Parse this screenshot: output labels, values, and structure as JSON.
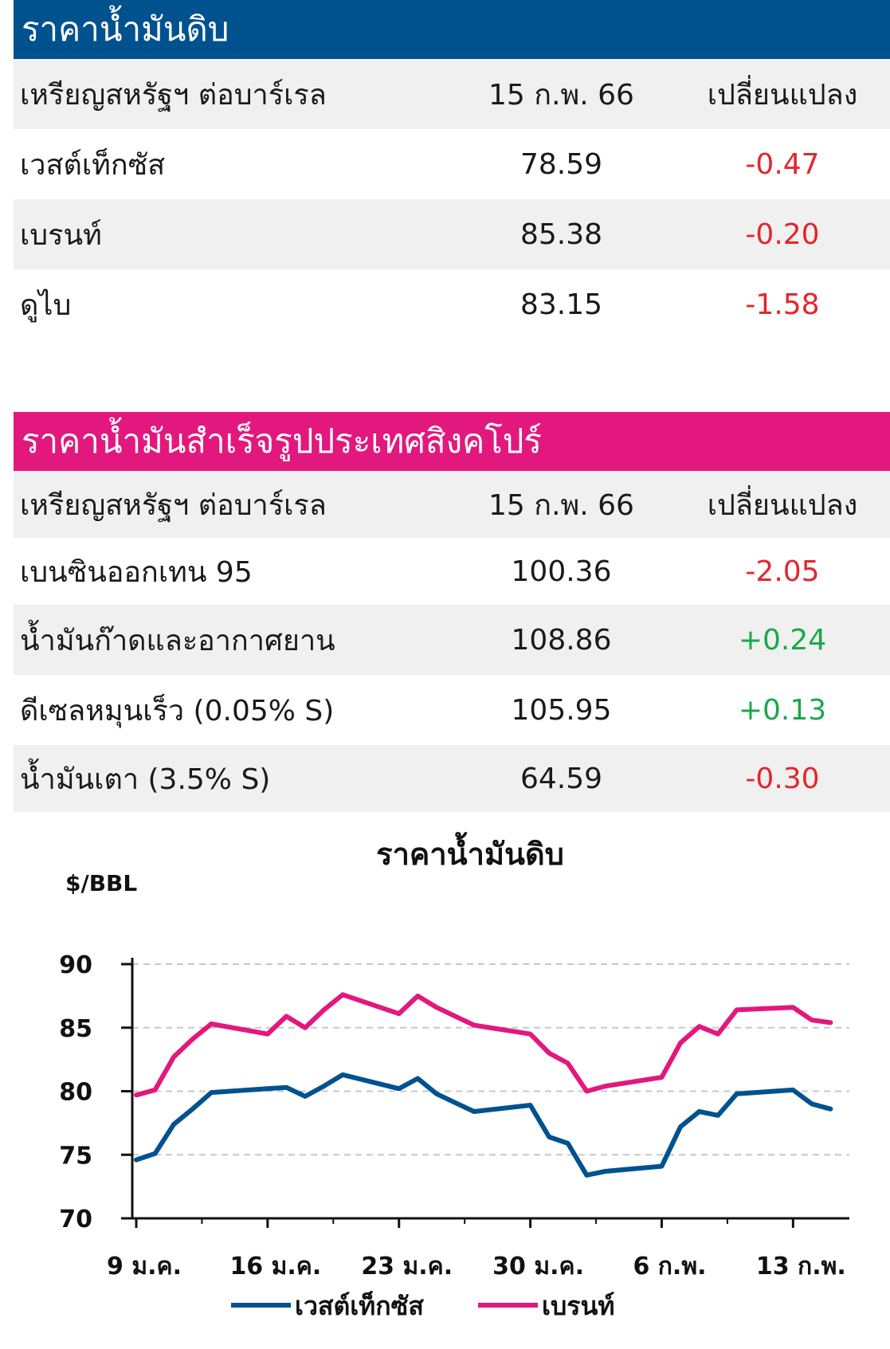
{
  "crude_table": {
    "title": "ราคาน้ำมันดิบ",
    "header": {
      "name": "เหรียญสหรัฐฯ ต่อบาร์เรล",
      "date": "15 ก.พ. 66",
      "change": "เปลี่ยนแปลง"
    },
    "rows": [
      {
        "name": "เวสต์เท็กซัส",
        "price": "78.59",
        "change": "-0.47"
      },
      {
        "name": "เบรนท์",
        "price": "85.38",
        "change": "-0.20"
      },
      {
        "name": "ดูไบ",
        "price": "83.15",
        "change": "-1.58"
      }
    ]
  },
  "sg_table": {
    "title": "ราคาน้ำมันสำเร็จรูปประเทศสิงคโปร์",
    "header": {
      "name": "เหรียญสหรัฐฯ ต่อบาร์เรล",
      "date": "15 ก.พ. 66",
      "change": "เปลี่ยนแปลง"
    },
    "rows": [
      {
        "name": "เบนซินออกเทน 95",
        "price": "100.36",
        "change": "-2.05"
      },
      {
        "name": "น้ำมันก๊าดและอากาศยาน",
        "price": "108.86",
        "change": "+0.24"
      },
      {
        "name": "ดีเซลหมุนเร็ว (0.05% S)",
        "price": "105.95",
        "change": "+0.13"
      },
      {
        "name": "น้ำมันเตา (3.5% S)",
        "price": "64.59",
        "change": "-0.30"
      }
    ]
  },
  "colors": {
    "negative": "#e3262d",
    "positive": "#1aa84b",
    "wti": "#00528f",
    "brent": "#e2187e"
  },
  "chart_data": {
    "type": "line",
    "title": "ราคาน้ำมันดิบ",
    "ylabel": "$/BBL",
    "ylim": [
      70,
      90
    ],
    "yticks": [
      70,
      75,
      80,
      85,
      90
    ],
    "xlim": [
      0,
      38
    ],
    "xticks": [
      {
        "x": 0,
        "label": "9 ม.ค."
      },
      {
        "x": 7,
        "label": "16 ม.ค."
      },
      {
        "x": 14,
        "label": "23 ม.ค."
      },
      {
        "x": 21,
        "label": "30 ม.ค."
      },
      {
        "x": 28,
        "label": "6 ก.พ."
      },
      {
        "x": 35,
        "label": "13 ก.พ."
      }
    ],
    "grid": "horizontal dashed",
    "legend_position": "bottom",
    "series": [
      {
        "name": "เวสต์เท็กซัส",
        "color": "#00528f",
        "x": [
          0,
          1,
          2,
          3,
          4,
          7,
          8,
          9,
          10,
          11,
          14,
          15,
          16,
          17,
          18,
          21,
          22,
          23,
          24,
          25,
          28,
          29,
          30,
          31,
          32,
          35,
          36,
          37
        ],
        "y": [
          74.6,
          75.1,
          77.4,
          78.6,
          79.9,
          80.2,
          80.3,
          79.6,
          80.4,
          81.3,
          80.2,
          81.0,
          79.8,
          79.1,
          78.4,
          78.9,
          76.4,
          75.9,
          73.4,
          73.7,
          74.1,
          77.2,
          78.4,
          78.1,
          79.8,
          80.1,
          79.0,
          78.6
        ]
      },
      {
        "name": "เบรนท์",
        "color": "#e2187e",
        "x": [
          0,
          1,
          2,
          3,
          4,
          7,
          8,
          9,
          10,
          11,
          14,
          15,
          16,
          17,
          18,
          21,
          22,
          23,
          24,
          25,
          28,
          29,
          30,
          31,
          32,
          35,
          36,
          37
        ],
        "y": [
          79.7,
          80.1,
          82.7,
          84.1,
          85.3,
          84.5,
          85.9,
          85.0,
          86.4,
          87.6,
          86.1,
          87.5,
          86.6,
          85.9,
          85.2,
          84.5,
          83.0,
          82.2,
          80.0,
          80.4,
          81.1,
          83.8,
          85.1,
          84.5,
          86.4,
          86.6,
          85.6,
          85.4
        ]
      }
    ]
  }
}
